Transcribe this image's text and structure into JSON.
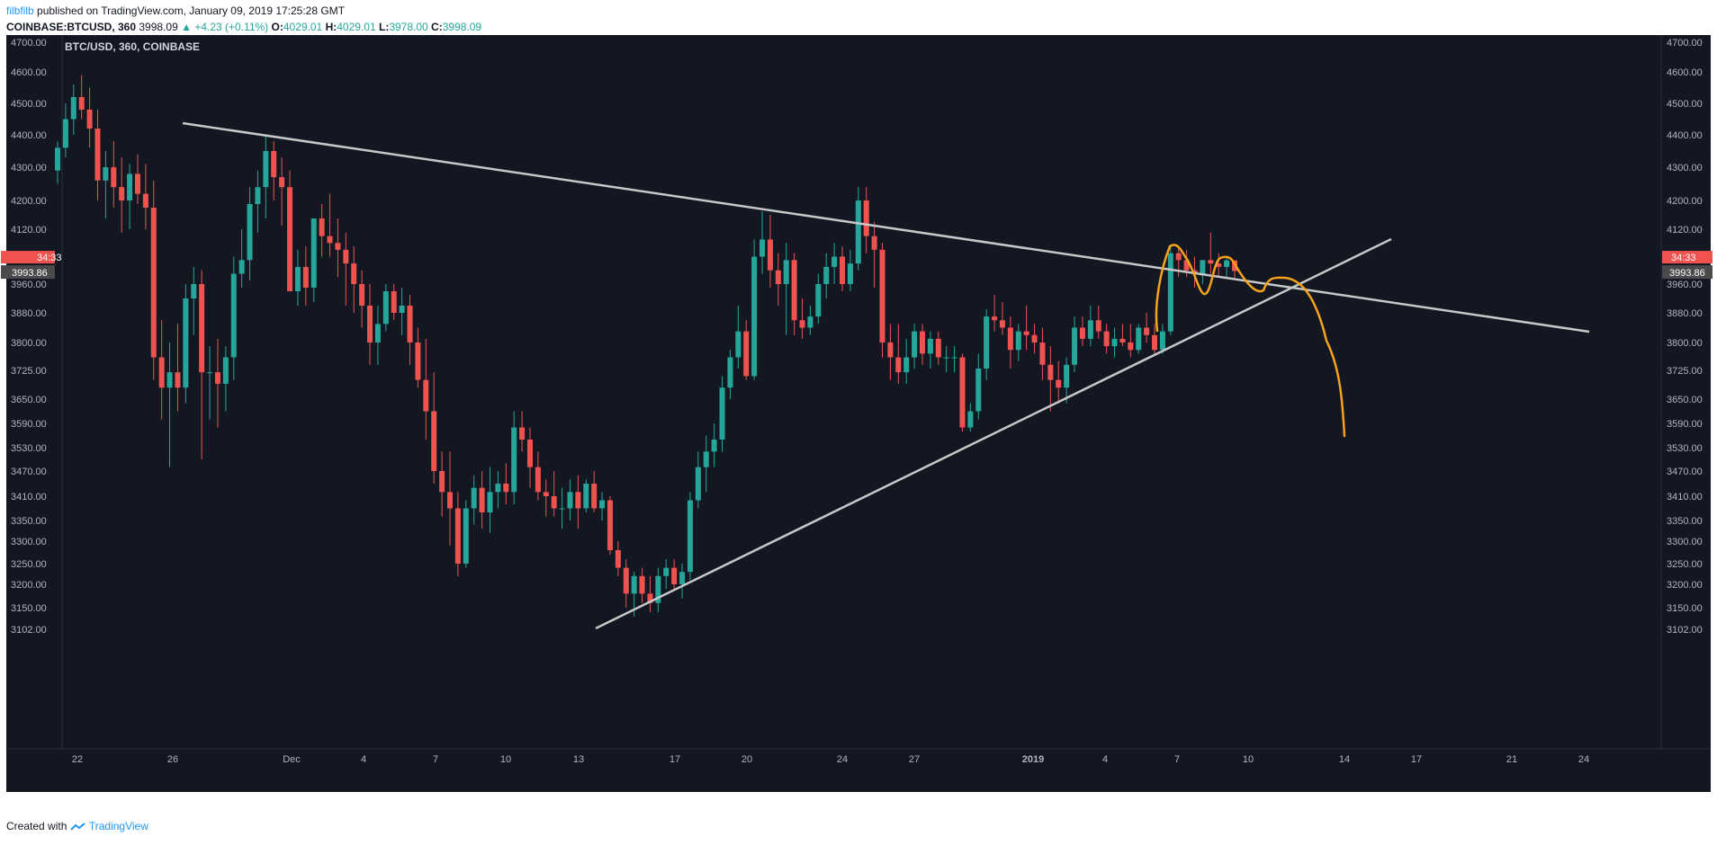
{
  "header": {
    "user": "filbfilb",
    "published": "published on TradingView.com, January 09, 2019 17:25:28 GMT",
    "symbol": "COINBASE:BTCUSD, 360",
    "last": "3998.09",
    "change": "▲ +4.23 (+0.11%)",
    "o_label": "O:",
    "o": "4029.01",
    "h_label": "H:",
    "h": "4029.01",
    "l_label": "L:",
    "l": "3978.00",
    "c_label": "C:",
    "c": "3998.09"
  },
  "footer": {
    "created_label": "Created with",
    "brand": "TradingView"
  },
  "colors": {
    "background": "#131722",
    "up": "#26a69a",
    "down": "#ef5350",
    "trendline": "#c8c8c8",
    "drawing": "#f7a21b"
  },
  "chart_data": {
    "type": "candlestick",
    "title": "BTC/USD, 360, COINBASE",
    "y_ticks": [
      "4700.00",
      "4600.00",
      "4500.00",
      "4400.00",
      "4300.00",
      "4200.00",
      "4120.00",
      "3960.00",
      "3880.00",
      "3800.00",
      "3725.00",
      "3650.00",
      "3590.00",
      "3530.00",
      "3470.00",
      "3410.00",
      "3350.00",
      "3300.00",
      "3250.00",
      "3200.00",
      "3150.00",
      "3102.00"
    ],
    "x_ticks": [
      "22",
      "26",
      "Dec",
      "4",
      "7",
      "10",
      "13",
      "17",
      "20",
      "24",
      "27",
      "2019",
      "4",
      "7",
      "10",
      "14",
      "17",
      "21",
      "24"
    ],
    "price_label": "3993.86",
    "countdown_label": "34:33",
    "grid": false,
    "series_ohlc": [
      [
        4290,
        4380,
        4250,
        4360
      ],
      [
        4360,
        4500,
        4330,
        4450
      ],
      [
        4450,
        4560,
        4400,
        4520
      ],
      [
        4520,
        4590,
        4450,
        4480
      ],
      [
        4480,
        4550,
        4360,
        4420
      ],
      [
        4420,
        4480,
        4200,
        4260
      ],
      [
        4260,
        4350,
        4150,
        4300
      ],
      [
        4300,
        4380,
        4180,
        4240
      ],
      [
        4240,
        4330,
        4110,
        4200
      ],
      [
        4200,
        4310,
        4120,
        4280
      ],
      [
        4280,
        4340,
        4190,
        4220
      ],
      [
        4220,
        4310,
        4120,
        4180
      ],
      [
        4180,
        4260,
        3700,
        3760
      ],
      [
        3760,
        3860,
        3600,
        3680
      ],
      [
        3680,
        3800,
        3480,
        3720
      ],
      [
        3720,
        3850,
        3620,
        3680
      ],
      [
        3680,
        3960,
        3640,
        3920
      ],
      [
        3920,
        4010,
        3820,
        3960
      ],
      [
        3960,
        4000,
        3500,
        3720
      ],
      [
        3720,
        3790,
        3600,
        3720
      ],
      [
        3720,
        3810,
        3580,
        3690
      ],
      [
        3690,
        3790,
        3620,
        3760
      ],
      [
        3760,
        4040,
        3700,
        3990
      ],
      [
        3990,
        4120,
        3950,
        4030
      ],
      [
        4030,
        4240,
        3970,
        4190
      ],
      [
        4190,
        4290,
        4110,
        4240
      ],
      [
        4240,
        4400,
        4150,
        4350
      ],
      [
        4350,
        4380,
        4200,
        4270
      ],
      [
        4270,
        4330,
        4130,
        4240
      ],
      [
        4240,
        4290,
        4100,
        3940
      ],
      [
        3940,
        4060,
        3900,
        4010
      ],
      [
        4010,
        4070,
        3900,
        3950
      ],
      [
        3950,
        4110,
        3910,
        4150
      ],
      [
        4150,
        4190,
        4040,
        4100
      ],
      [
        4100,
        4220,
        4040,
        4080
      ],
      [
        4080,
        4150,
        3980,
        4060
      ],
      [
        4060,
        4110,
        3900,
        4020
      ],
      [
        4020,
        4070,
        3880,
        3960
      ],
      [
        3960,
        4000,
        3840,
        3900
      ],
      [
        3900,
        3960,
        3740,
        3800
      ],
      [
        3800,
        3900,
        3740,
        3850
      ],
      [
        3850,
        3960,
        3830,
        3940
      ],
      [
        3940,
        3960,
        3860,
        3880
      ],
      [
        3880,
        3950,
        3820,
        3900
      ],
      [
        3900,
        3930,
        3740,
        3800
      ],
      [
        3800,
        3840,
        3680,
        3700
      ],
      [
        3700,
        3810,
        3550,
        3620
      ],
      [
        3620,
        3720,
        3440,
        3470
      ],
      [
        3470,
        3520,
        3360,
        3420
      ],
      [
        3420,
        3520,
        3290,
        3380
      ],
      [
        3380,
        3420,
        3220,
        3250
      ],
      [
        3250,
        3400,
        3240,
        3380
      ],
      [
        3380,
        3460,
        3340,
        3430
      ],
      [
        3430,
        3470,
        3330,
        3370
      ],
      [
        3370,
        3480,
        3320,
        3420
      ],
      [
        3420,
        3470,
        3380,
        3440
      ],
      [
        3440,
        3490,
        3390,
        3420
      ],
      [
        3420,
        3620,
        3390,
        3580
      ],
      [
        3580,
        3620,
        3520,
        3550
      ],
      [
        3550,
        3580,
        3430,
        3480
      ],
      [
        3480,
        3520,
        3400,
        3420
      ],
      [
        3420,
        3450,
        3360,
        3410
      ],
      [
        3410,
        3470,
        3360,
        3380
      ],
      [
        3380,
        3430,
        3330,
        3380
      ],
      [
        3380,
        3450,
        3350,
        3420
      ],
      [
        3420,
        3460,
        3330,
        3380
      ],
      [
        3380,
        3450,
        3370,
        3440
      ],
      [
        3440,
        3470,
        3370,
        3380
      ],
      [
        3380,
        3420,
        3350,
        3400
      ],
      [
        3400,
        3410,
        3270,
        3280
      ],
      [
        3280,
        3300,
        3220,
        3240
      ],
      [
        3240,
        3260,
        3150,
        3180
      ],
      [
        3180,
        3230,
        3130,
        3220
      ],
      [
        3220,
        3240,
        3160,
        3180
      ],
      [
        3180,
        3220,
        3140,
        3160
      ],
      [
        3160,
        3240,
        3140,
        3220
      ],
      [
        3220,
        3260,
        3190,
        3240
      ],
      [
        3240,
        3260,
        3190,
        3200
      ],
      [
        3200,
        3250,
        3170,
        3230
      ],
      [
        3230,
        3420,
        3210,
        3400
      ],
      [
        3400,
        3520,
        3380,
        3480
      ],
      [
        3480,
        3560,
        3420,
        3520
      ],
      [
        3520,
        3590,
        3480,
        3550
      ],
      [
        3550,
        3710,
        3520,
        3680
      ],
      [
        3680,
        3780,
        3650,
        3760
      ],
      [
        3760,
        3900,
        3730,
        3830
      ],
      [
        3830,
        3860,
        3700,
        3710
      ],
      [
        3710,
        4090,
        3700,
        4040
      ],
      [
        4040,
        4170,
        3990,
        4090
      ],
      [
        4090,
        4160,
        3950,
        4000
      ],
      [
        4000,
        4050,
        3900,
        3960
      ],
      [
        3960,
        4080,
        3820,
        4030
      ],
      [
        4030,
        4050,
        3820,
        3860
      ],
      [
        3860,
        3920,
        3810,
        3840
      ],
      [
        3840,
        3900,
        3820,
        3870
      ],
      [
        3870,
        3990,
        3850,
        3960
      ],
      [
        3960,
        4050,
        3920,
        4010
      ],
      [
        4010,
        4080,
        3960,
        4040
      ],
      [
        4040,
        4070,
        3940,
        3960
      ],
      [
        3960,
        4060,
        3940,
        4020
      ],
      [
        4020,
        4240,
        4000,
        4200
      ],
      [
        4200,
        4240,
        4050,
        4100
      ],
      [
        4100,
        4140,
        3950,
        4060
      ],
      [
        4060,
        4080,
        3760,
        3800
      ],
      [
        3800,
        3850,
        3700,
        3760
      ],
      [
        3760,
        3850,
        3690,
        3720
      ],
      [
        3720,
        3810,
        3690,
        3760
      ],
      [
        3760,
        3850,
        3730,
        3830
      ],
      [
        3830,
        3850,
        3740,
        3770
      ],
      [
        3770,
        3830,
        3730,
        3810
      ],
      [
        3810,
        3830,
        3740,
        3760
      ],
      [
        3760,
        3790,
        3720,
        3760
      ],
      [
        3760,
        3790,
        3720,
        3760
      ],
      [
        3760,
        3770,
        3570,
        3580
      ],
      [
        3580,
        3640,
        3570,
        3620
      ],
      [
        3620,
        3770,
        3600,
        3730
      ],
      [
        3730,
        3890,
        3700,
        3870
      ],
      [
        3870,
        3930,
        3830,
        3860
      ],
      [
        3860,
        3910,
        3820,
        3840
      ],
      [
        3840,
        3870,
        3730,
        3780
      ],
      [
        3780,
        3850,
        3750,
        3830
      ],
      [
        3830,
        3900,
        3780,
        3820
      ],
      [
        3820,
        3850,
        3770,
        3800
      ],
      [
        3800,
        3840,
        3700,
        3740
      ],
      [
        3740,
        3790,
        3620,
        3700
      ],
      [
        3700,
        3750,
        3640,
        3680
      ],
      [
        3680,
        3760,
        3640,
        3740
      ],
      [
        3740,
        3870,
        3720,
        3840
      ],
      [
        3840,
        3870,
        3790,
        3810
      ],
      [
        3810,
        3900,
        3790,
        3860
      ],
      [
        3860,
        3900,
        3810,
        3830
      ],
      [
        3830,
        3850,
        3770,
        3790
      ],
      [
        3790,
        3840,
        3760,
        3810
      ],
      [
        3810,
        3850,
        3790,
        3800
      ],
      [
        3800,
        3850,
        3760,
        3780
      ],
      [
        3780,
        3850,
        3770,
        3840
      ],
      [
        3840,
        3880,
        3800,
        3820
      ],
      [
        3820,
        3850,
        3770,
        3780
      ],
      [
        3780,
        3850,
        3770,
        3830
      ],
      [
        3830,
        4070,
        3820,
        4050
      ],
      [
        4050,
        4070,
        3980,
        4030
      ],
      [
        4030,
        4060,
        3980,
        4000
      ],
      [
        4000,
        4040,
        3950,
        3990
      ],
      [
        3990,
        4030,
        3960,
        4030
      ],
      [
        4030,
        4110,
        3990,
        4020
      ],
      [
        4020,
        4050,
        3980,
        4010
      ],
      [
        4010,
        4040,
        3980,
        4029
      ],
      [
        4029,
        4029,
        3978,
        3998
      ]
    ],
    "trendlines": [
      {
        "from": [
          "Nov 26",
          "4440"
        ],
        "to": [
          "Jan 24",
          "3920"
        ]
      },
      {
        "from": [
          "Dec 14",
          "3110"
        ],
        "to": [
          "Jan 16",
          "4080"
        ]
      }
    ]
  }
}
